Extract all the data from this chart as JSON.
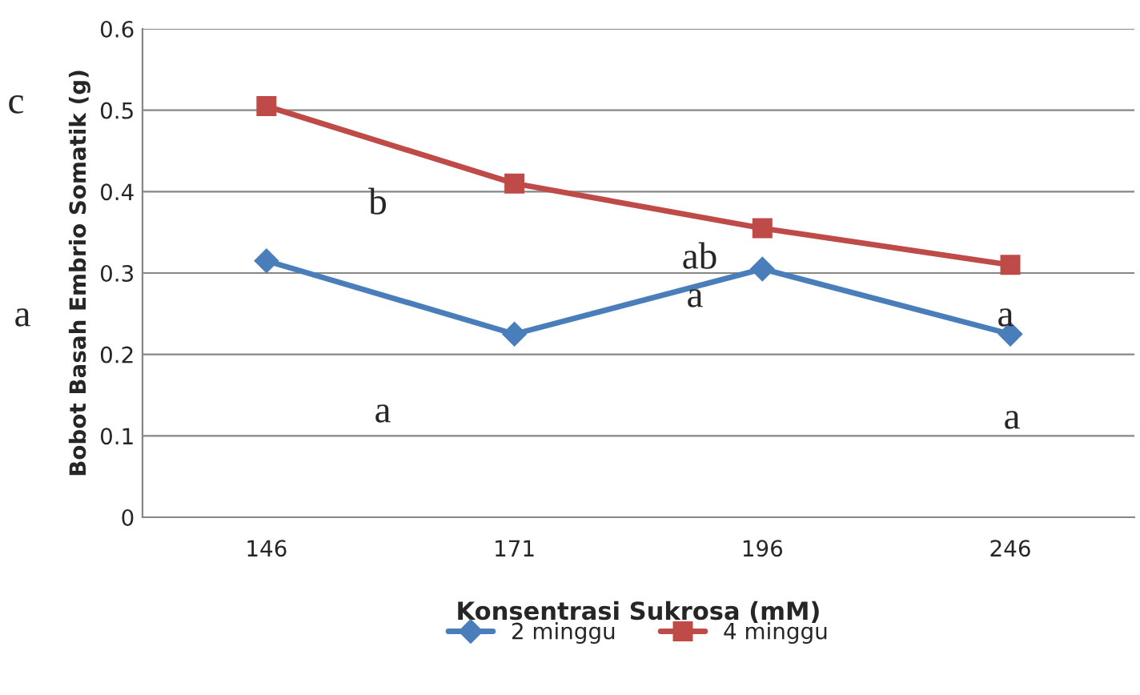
{
  "chart_data": {
    "type": "line",
    "xlabel": "Konsentrasi Sukrosa (mM)",
    "ylabel": "Bobot Basah Embrio Somatik (g)",
    "categories": [
      "146",
      "171",
      "196",
      "246"
    ],
    "series": [
      {
        "name": "2 minggu",
        "color": "#4a7ebb",
        "marker": "diamond",
        "values": [
          0.315,
          0.225,
          0.305,
          0.225
        ]
      },
      {
        "name": "4 minggu",
        "color": "#be4b48",
        "marker": "square",
        "values": [
          0.505,
          0.41,
          0.355,
          0.31
        ]
      }
    ],
    "ylim": [
      0,
      0.6
    ],
    "yticks": [
      {
        "value": 0,
        "label": "0"
      },
      0.1,
      0.2,
      0.3,
      0.4,
      0.5,
      0.6
    ],
    "grid": "y",
    "legend": "bottom",
    "line_style": "solid",
    "annotations": [
      "c",
      "b",
      "ab",
      "a",
      "a",
      "a",
      "a",
      "a"
    ]
  }
}
